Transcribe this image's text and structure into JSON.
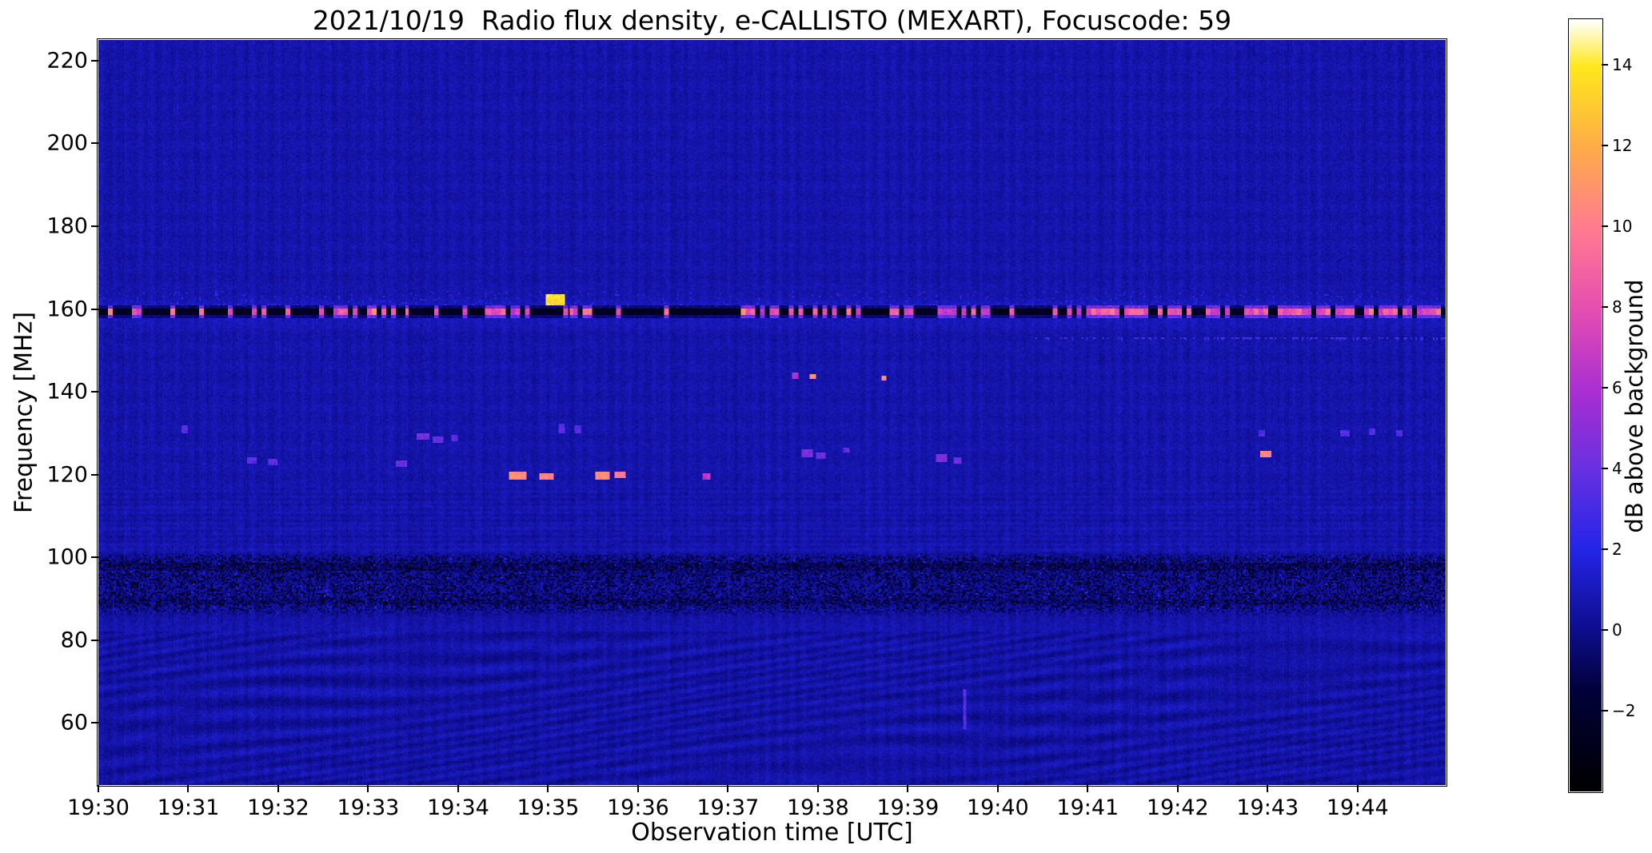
{
  "chart_data": {
    "type": "heatmap",
    "title": "2021/10/19  Radio flux density, e-CALLISTO (MEXART), Focuscode: 59",
    "xlabel": "Observation time [UTC]",
    "ylabel": "Frequency [MHz]",
    "x_ticks": [
      "19:30",
      "19:31",
      "19:32",
      "19:33",
      "19:34",
      "19:35",
      "19:36",
      "19:37",
      "19:38",
      "19:39",
      "19:40",
      "19:41",
      "19:42",
      "19:43",
      "19:44"
    ],
    "x_range_minutes_after_1930": [
      0,
      14.98
    ],
    "y_ticks": [
      220,
      200,
      180,
      160,
      140,
      120,
      100,
      80,
      60
    ],
    "y_range_mhz": [
      45,
      225
    ],
    "grid": false,
    "colorbar": {
      "label": "dB above background",
      "ticks": [
        14,
        12,
        10,
        8,
        6,
        4,
        2,
        0,
        -2
      ],
      "value_range": [
        -4,
        15.1
      ],
      "colormap_stops": [
        {
          "pos": 0.0,
          "color": "#000000"
        },
        {
          "pos": 0.13,
          "color": "#01013a"
        },
        {
          "pos": 0.21,
          "color": "#0d0d8e"
        },
        {
          "pos": 0.315,
          "color": "#2525e8"
        },
        {
          "pos": 0.42,
          "color": "#6930e0"
        },
        {
          "pos": 0.52,
          "color": "#aa2ed2"
        },
        {
          "pos": 0.63,
          "color": "#e84fb0"
        },
        {
          "pos": 0.73,
          "color": "#ff7b90"
        },
        {
          "pos": 0.84,
          "color": "#ffae45"
        },
        {
          "pos": 0.94,
          "color": "#ffe81c"
        },
        {
          "pos": 1.0,
          "color": "#ffffff"
        }
      ]
    },
    "background_noise_db": {
      "mean": 0.6,
      "spread": 0.75
    },
    "rfi_band": {
      "center_mhz": 159.3,
      "halfwidth_mhz": 0.85,
      "dark_db": -3.6,
      "bright_db_range": [
        6.3,
        9.7
      ],
      "segments": [
        {
          "t0": 0.0,
          "t1": 2.55,
          "bright_fraction": 0.1
        },
        {
          "t0": 2.55,
          "t1": 3.45,
          "bright_fraction": 0.55
        },
        {
          "t0": 3.45,
          "t1": 4.3,
          "bright_fraction": 0.15
        },
        {
          "t0": 4.3,
          "t1": 4.65,
          "bright_fraction": 0.65
        },
        {
          "t0": 4.65,
          "t1": 5.25,
          "bright_fraction": 0.18
        },
        {
          "t0": 5.25,
          "t1": 5.55,
          "bright_fraction": 0.6
        },
        {
          "t0": 5.55,
          "t1": 6.85,
          "bright_fraction": 0.22
        },
        {
          "t0": 6.85,
          "t1": 9.95,
          "bright_fraction": 0.5
        },
        {
          "t0": 9.95,
          "t1": 10.35,
          "bright_fraction": 0.3
        },
        {
          "t0": 10.35,
          "t1": 15.0,
          "bright_fraction": 0.68
        }
      ]
    },
    "noise_bands": [
      {
        "f0": 85.5,
        "f1": 101.5,
        "kind": "dark-speckle"
      },
      {
        "f0": 101.5,
        "f1": 117.0,
        "kind": "horizontal-texture"
      },
      {
        "f0": 45.0,
        "f1": 82.0,
        "kind": "wavy-interference"
      }
    ],
    "speckle_line": {
      "t0": 10.4,
      "t1": 15.0,
      "f": 153.2,
      "db": 2.8
    },
    "features": [
      {
        "t": 5.07,
        "f": 162.5,
        "dt": 0.2,
        "df": 2.4,
        "db": 13.6
      },
      {
        "t": 4.66,
        "f": 119.9,
        "dt": 0.17,
        "df": 1.3,
        "db": 10.6
      },
      {
        "t": 4.97,
        "f": 119.8,
        "dt": 0.14,
        "df": 1.2,
        "db": 10.2
      },
      {
        "t": 5.6,
        "f": 120.0,
        "dt": 0.15,
        "df": 1.3,
        "db": 10.6
      },
      {
        "t": 5.79,
        "f": 120.1,
        "dt": 0.11,
        "df": 1.1,
        "db": 9.8
      },
      {
        "t": 6.76,
        "f": 119.8,
        "dt": 0.07,
        "df": 1.0,
        "db": 6.5
      },
      {
        "t": 7.93,
        "f": 143.9,
        "dt": 0.05,
        "df": 1.1,
        "db": 11.0
      },
      {
        "t": 8.72,
        "f": 143.4,
        "dt": 0.04,
        "df": 0.9,
        "db": 10.5
      },
      {
        "t": 12.97,
        "f": 125.1,
        "dt": 0.12,
        "df": 1.1,
        "db": 10.3
      },
      {
        "t": 7.74,
        "f": 144.0,
        "dt": 0.05,
        "df": 1.0,
        "db": 6.0
      },
      {
        "t": 0.95,
        "f": 131.0,
        "dt": 0.06,
        "df": 1.6,
        "db": 3.4
      },
      {
        "t": 1.7,
        "f": 123.6,
        "dt": 0.1,
        "df": 1.3,
        "db": 3.6
      },
      {
        "t": 1.93,
        "f": 123.1,
        "dt": 0.08,
        "df": 1.2,
        "db": 3.5
      },
      {
        "t": 3.36,
        "f": 122.9,
        "dt": 0.1,
        "df": 1.4,
        "db": 4.0
      },
      {
        "t": 3.6,
        "f": 129.4,
        "dt": 0.13,
        "df": 1.2,
        "db": 4.3
      },
      {
        "t": 3.77,
        "f": 128.7,
        "dt": 0.1,
        "df": 1.1,
        "db": 4.0
      },
      {
        "t": 3.95,
        "f": 129.1,
        "dt": 0.06,
        "df": 1.0,
        "db": 3.6
      },
      {
        "t": 5.14,
        "f": 131.3,
        "dt": 0.05,
        "df": 1.7,
        "db": 3.4
      },
      {
        "t": 5.32,
        "f": 131.1,
        "dt": 0.05,
        "df": 1.5,
        "db": 3.4
      },
      {
        "t": 7.87,
        "f": 125.3,
        "dt": 0.1,
        "df": 1.4,
        "db": 4.5
      },
      {
        "t": 8.02,
        "f": 124.7,
        "dt": 0.08,
        "df": 1.2,
        "db": 4.1
      },
      {
        "t": 8.31,
        "f": 126.1,
        "dt": 0.06,
        "df": 1.0,
        "db": 3.6
      },
      {
        "t": 9.37,
        "f": 124.3,
        "dt": 0.1,
        "df": 1.5,
        "db": 4.5
      },
      {
        "t": 9.54,
        "f": 123.7,
        "dt": 0.08,
        "df": 1.2,
        "db": 4.0
      },
      {
        "t": 9.62,
        "f": 63.5,
        "dt": 0.025,
        "df": 9.0,
        "db": 3.4
      },
      {
        "t": 13.85,
        "f": 130.3,
        "dt": 0.08,
        "df": 1.2,
        "db": 3.4
      },
      {
        "t": 14.15,
        "f": 130.6,
        "dt": 0.06,
        "df": 1.0,
        "db": 3.2
      },
      {
        "t": 12.93,
        "f": 130.1,
        "dt": 0.05,
        "df": 1.0,
        "db": 3.2
      },
      {
        "t": 14.45,
        "f": 130.2,
        "dt": 0.05,
        "df": 1.0,
        "db": 3.2
      }
    ]
  }
}
